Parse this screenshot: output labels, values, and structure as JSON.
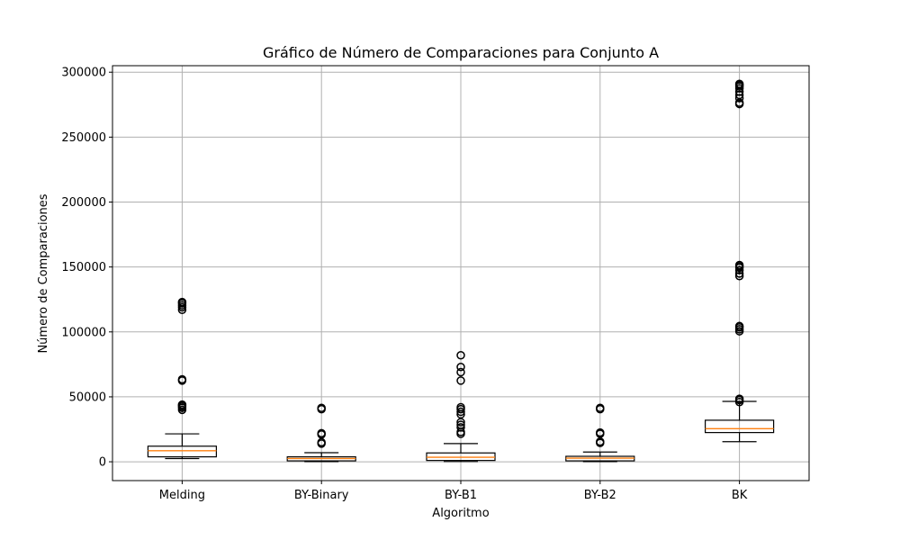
{
  "chart_data": {
    "type": "boxplot",
    "title": "Gráfico de Número de Comparaciones para Conjunto A",
    "xlabel": "Algoritmo",
    "ylabel": "Número de Comparaciones",
    "ylim": [
      -14500,
      305000
    ],
    "yticks": [
      0,
      50000,
      100000,
      150000,
      200000,
      250000,
      300000
    ],
    "ytick_labels": [
      "0",
      "50000",
      "100000",
      "150000",
      "200000",
      "250000",
      "300000"
    ],
    "grid": true,
    "categories": [
      "Melding",
      "BY-Binary",
      "BY-B1",
      "BY-B2",
      "BK"
    ],
    "boxes": [
      {
        "label": "Melding",
        "whisker_low": 2500,
        "q1": 3800,
        "median": 8500,
        "q3": 12000,
        "whisker_high": 21500,
        "outliers": [
          40000,
          41500,
          42500,
          43500,
          44000,
          62500,
          63500,
          117000,
          119000,
          120500,
          122000,
          123000
        ]
      },
      {
        "label": "BY-Binary",
        "whisker_low": 100,
        "q1": 700,
        "median": 2500,
        "q3": 3800,
        "whisker_high": 7000,
        "outliers": [
          14000,
          15000,
          21000,
          22000,
          40500,
          41500
        ]
      },
      {
        "label": "BY-B1",
        "whisker_low": 200,
        "q1": 1000,
        "median": 3500,
        "q3": 6800,
        "whisker_high": 14000,
        "outliers": [
          21500,
          23000,
          26500,
          28500,
          30500,
          36500,
          38500,
          40500,
          42000,
          62500,
          69000,
          73000,
          82000
        ]
      },
      {
        "label": "BY-B2",
        "whisker_low": 100,
        "q1": 700,
        "median": 2800,
        "q3": 4200,
        "whisker_high": 7500,
        "outliers": [
          14500,
          15500,
          21500,
          22500,
          40500,
          41500
        ]
      },
      {
        "label": "BK",
        "whisker_low": 15500,
        "q1": 22500,
        "median": 25500,
        "q3": 32000,
        "whisker_high": 46500,
        "outliers": [
          46000,
          47500,
          48500,
          100500,
          102000,
          103500,
          104500,
          143000,
          145000,
          147500,
          149500,
          150500,
          151500,
          275500,
          276500,
          280000,
          282500,
          285000,
          287500,
          289000,
          290000,
          291000
        ]
      }
    ],
    "colors": {
      "box": "#000000",
      "median": "#ff7f0e",
      "grid": "#b0b0b0",
      "flier": "#000000"
    }
  }
}
